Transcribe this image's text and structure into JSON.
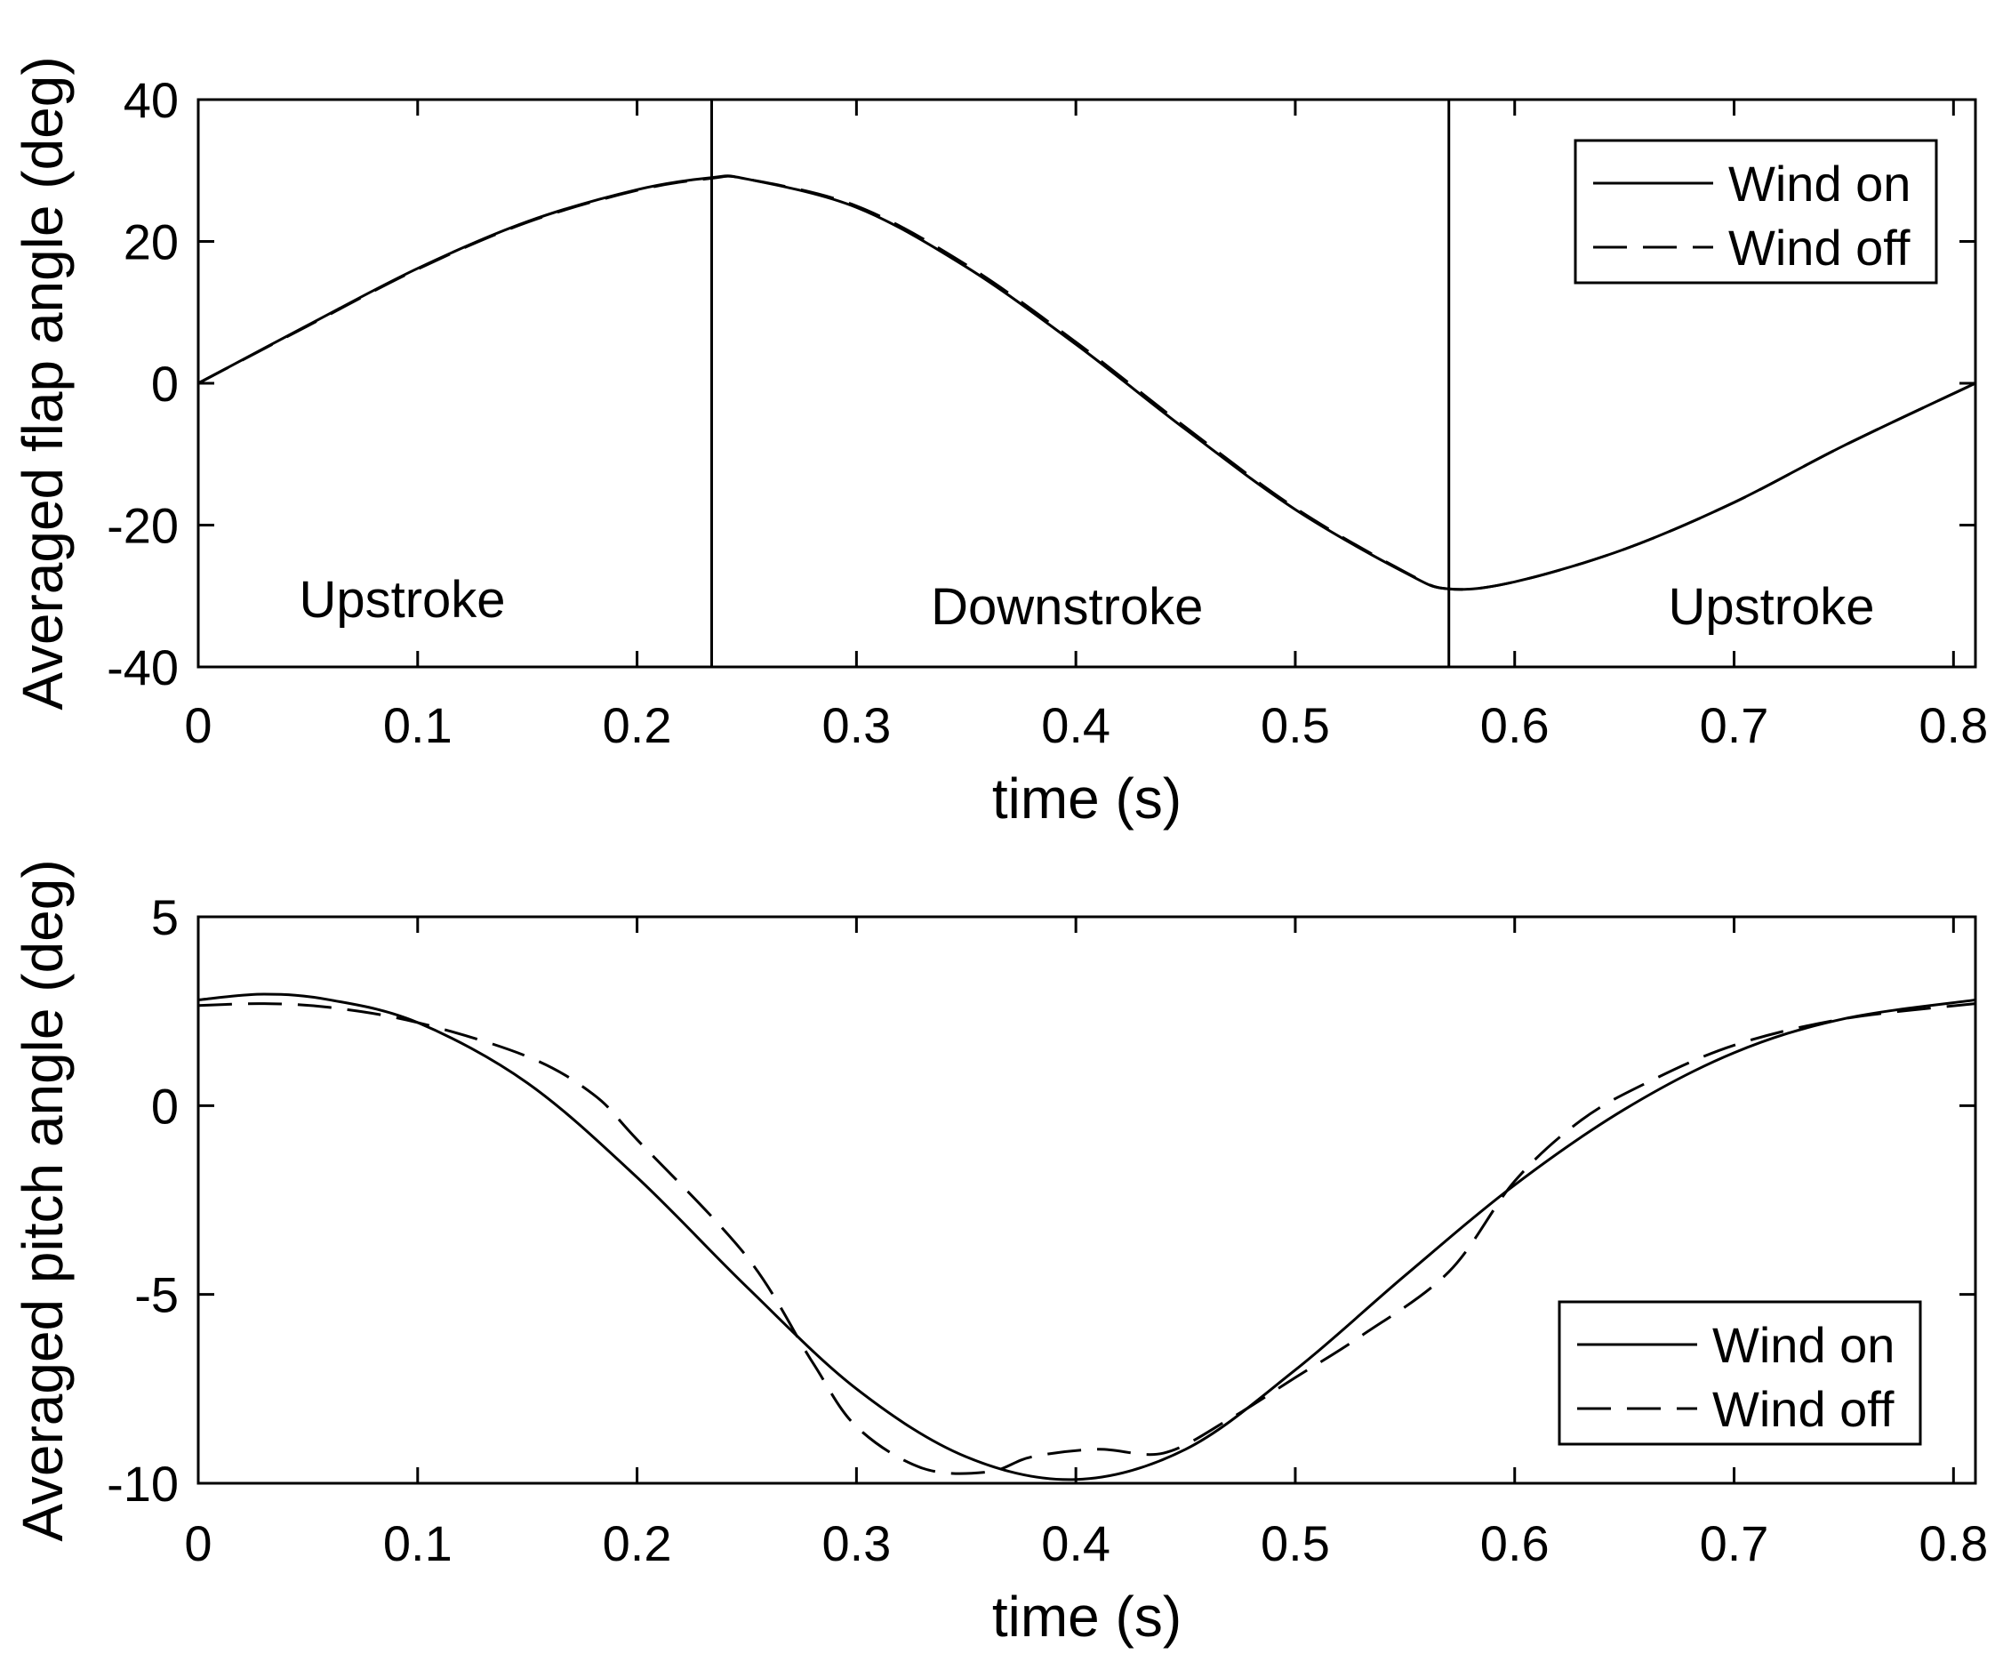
{
  "chart_data": [
    {
      "type": "line",
      "title": "",
      "xlabel": "time (s)",
      "ylabel": "Averaged flap angle (deg)",
      "xlim": [
        0,
        0.81
      ],
      "ylim": [
        -40,
        40
      ],
      "xticks": [
        0,
        0.1,
        0.2,
        0.3,
        0.4,
        0.5,
        0.6,
        0.7,
        0.8
      ],
      "xtick_labels": [
        "0",
        "0.1",
        "0.2",
        "0.3",
        "0.4",
        "0.5",
        "0.6",
        "0.7",
        "0.8"
      ],
      "yticks": [
        -40,
        -20,
        0,
        20,
        40
      ],
      "ytick_labels": [
        "-40",
        "-20",
        "0",
        "20",
        "40"
      ],
      "legend": {
        "position": "top-right",
        "entries": [
          "Wind on",
          "Wind off"
        ]
      },
      "vertical_lines": [
        0.234,
        0.57
      ],
      "annotations": [
        {
          "text": "Upstroke",
          "x": 0.093,
          "y": -30.5
        },
        {
          "text": "Downstroke",
          "x": 0.396,
          "y": -31.5
        },
        {
          "text": "Upstroke",
          "x": 0.717,
          "y": -31.5
        }
      ],
      "series": [
        {
          "name": "Wind on",
          "style": "solid",
          "x": [
            0,
            0.05,
            0.1,
            0.15,
            0.2,
            0.234,
            0.25,
            0.3,
            0.35,
            0.4,
            0.45,
            0.5,
            0.55,
            0.57,
            0.6,
            0.65,
            0.7,
            0.75,
            0.81
          ],
          "y": [
            0,
            8.2,
            16.2,
            22.8,
            27.3,
            29.0,
            28.8,
            24.8,
            16.4,
            5.5,
            -6.5,
            -17.8,
            -26.7,
            -29.0,
            -28.0,
            -23.4,
            -16.8,
            -8.8,
            0
          ]
        },
        {
          "name": "Wind off",
          "style": "dashed",
          "x": [
            0,
            0.05,
            0.1,
            0.15,
            0.2,
            0.234,
            0.25,
            0.3,
            0.35,
            0.4,
            0.45,
            0.5,
            0.55,
            0.57,
            0.6,
            0.65,
            0.7,
            0.75,
            0.81
          ],
          "y": [
            0,
            8.1,
            16.1,
            22.7,
            27.2,
            28.9,
            28.8,
            25.0,
            16.7,
            5.8,
            -6.2,
            -17.6,
            -26.6,
            -29.0,
            -28.0,
            -23.4,
            -16.8,
            -8.8,
            0
          ]
        }
      ]
    },
    {
      "type": "line",
      "title": "",
      "xlabel": "time (s)",
      "ylabel": "Averaged pitch angle (deg)",
      "xlim": [
        0,
        0.81
      ],
      "ylim": [
        -10,
        5
      ],
      "xticks": [
        0,
        0.1,
        0.2,
        0.3,
        0.4,
        0.5,
        0.6,
        0.7,
        0.8
      ],
      "xtick_labels": [
        "0",
        "0.1",
        "0.2",
        "0.3",
        "0.4",
        "0.5",
        "0.6",
        "0.7",
        "0.8"
      ],
      "yticks": [
        -10,
        -5,
        0,
        5
      ],
      "ytick_labels": [
        "-10",
        "-5",
        "0",
        "5"
      ],
      "legend": {
        "position": "bottom-right",
        "entries": [
          "Wind on",
          "Wind off"
        ]
      },
      "series": [
        {
          "name": "Wind on",
          "style": "solid",
          "x": [
            0,
            0.03,
            0.06,
            0.1,
            0.15,
            0.2,
            0.25,
            0.3,
            0.35,
            0.4,
            0.45,
            0.5,
            0.55,
            0.6,
            0.65,
            0.7,
            0.75,
            0.81
          ],
          "y": [
            2.8,
            2.95,
            2.8,
            2.2,
            0.6,
            -1.9,
            -4.8,
            -7.5,
            -9.3,
            -9.9,
            -9.1,
            -7.0,
            -4.5,
            -2.1,
            -0.1,
            1.4,
            2.3,
            2.8
          ]
        },
        {
          "name": "Wind off",
          "style": "dashed",
          "x": [
            0,
            0.03,
            0.06,
            0.1,
            0.15,
            0.18,
            0.2,
            0.25,
            0.28,
            0.3,
            0.33,
            0.36,
            0.38,
            0.41,
            0.44,
            0.47,
            0.5,
            0.53,
            0.57,
            0.6,
            0.63,
            0.66,
            0.7,
            0.75,
            0.81
          ],
          "y": [
            2.65,
            2.7,
            2.6,
            2.2,
            1.3,
            0.3,
            -0.9,
            -4.0,
            -6.8,
            -8.5,
            -9.6,
            -9.7,
            -9.3,
            -9.1,
            -9.2,
            -8.3,
            -7.2,
            -6.1,
            -4.4,
            -2.0,
            -0.4,
            0.6,
            1.6,
            2.3,
            2.7
          ]
        }
      ]
    }
  ]
}
